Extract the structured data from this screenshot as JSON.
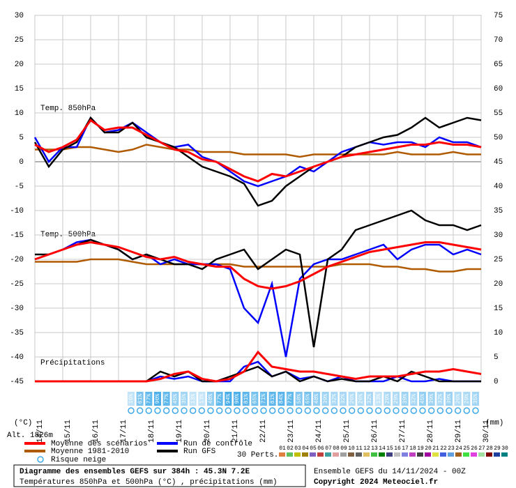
{
  "chart_data": {
    "type": "line",
    "annotations": {
      "t850": "Temp. 850hPa",
      "t500": "Temp. 500hPa",
      "precip": "Précipitations",
      "unit_left": "(°C)",
      "unit_right": "(mm)",
      "altitude": "Alt. 1826m"
    },
    "ylim": [
      -45,
      30
    ],
    "yticks": [
      -45,
      -40,
      -35,
      -30,
      -25,
      -20,
      -15,
      -10,
      -5,
      0,
      5,
      10,
      15,
      20,
      25,
      30
    ],
    "y2lim": [
      0,
      75
    ],
    "y2ticks": [
      0,
      5,
      10,
      15,
      20,
      25,
      30,
      35,
      40,
      45,
      50,
      55,
      60,
      65,
      70,
      75
    ],
    "xlim": [
      0,
      16
    ],
    "xticks": [
      {
        "value": 0,
        "label": "14/11"
      },
      {
        "value": 1,
        "label": "15/11"
      },
      {
        "value": 2,
        "label": "16/11"
      },
      {
        "value": 3,
        "label": "17/11"
      },
      {
        "value": 4,
        "label": "18/11"
      },
      {
        "value": 5,
        "label": "19/11"
      },
      {
        "value": 6,
        "label": "20/11"
      },
      {
        "value": 7,
        "label": "21/11"
      },
      {
        "value": 8,
        "label": "22/11"
      },
      {
        "value": 9,
        "label": "23/11"
      },
      {
        "value": 10,
        "label": "24/11"
      },
      {
        "value": 11,
        "label": "25/11"
      },
      {
        "value": 12,
        "label": "26/11"
      },
      {
        "value": 13,
        "label": "27/11"
      },
      {
        "value": 14,
        "label": "28/11"
      },
      {
        "value": 15,
        "label": "29/11"
      },
      {
        "value": 16,
        "label": "30/11"
      }
    ],
    "grid": true,
    "x": [
      0,
      0.5,
      1,
      1.5,
      2,
      2.5,
      3,
      3.5,
      4,
      4.5,
      5,
      5.5,
      6,
      6.5,
      7,
      7.5,
      8,
      8.5,
      9,
      9.5,
      10,
      10.5,
      11,
      11.5,
      12,
      12.5,
      13,
      13.5,
      14,
      14.5,
      15,
      15.5,
      16
    ],
    "series": [
      {
        "name": "Moyenne 1981-2010",
        "color": "#b05a00",
        "t850": [
          2.5,
          2.5,
          2.5,
          3,
          3,
          2.5,
          2,
          2.5,
          3.5,
          3,
          2.5,
          2.5,
          2,
          2,
          2,
          1.5,
          1.5,
          1.5,
          1.5,
          1,
          1.5,
          1.5,
          1.5,
          1.5,
          1.5,
          1.5,
          2,
          1.5,
          1.5,
          1.5,
          2,
          1.5,
          1.5
        ],
        "t500": [
          -20.5,
          -20.5,
          -20.5,
          -20.5,
          -20,
          -20,
          -20,
          -20.5,
          -21,
          -21,
          -21,
          -21,
          -21,
          -21,
          -21,
          -21.5,
          -21.5,
          -21.5,
          -21.5,
          -21.5,
          -21.5,
          -21.5,
          -21,
          -21,
          -21,
          -21.5,
          -21.5,
          -22,
          -22,
          -22.5,
          -22.5,
          -22,
          -22
        ]
      },
      {
        "name": "Run de contrôle",
        "color": "#0000ff",
        "t850": [
          5,
          0,
          3,
          3,
          9,
          6,
          6.5,
          8,
          6,
          4,
          3,
          3.5,
          1,
          0,
          -2,
          -4,
          -5,
          -4,
          -3,
          -1,
          -2,
          0,
          2,
          3,
          4,
          3.5,
          4,
          4,
          3,
          5,
          4,
          4,
          3
        ],
        "t500": [
          -20,
          -19,
          -18,
          -16.5,
          -16,
          -17,
          -18,
          -20,
          -19,
          -21,
          -20,
          -21,
          -21,
          -21,
          -22,
          -30,
          -33,
          -25,
          -40,
          -24,
          -21,
          -20,
          -20,
          -19,
          -18,
          -17,
          -20,
          -18,
          -17,
          -17,
          -19,
          -18,
          -19
        ],
        "precip": [
          0,
          0,
          0,
          0,
          0,
          0,
          0,
          0,
          0,
          1,
          0.5,
          1,
          0,
          0,
          0,
          3,
          4,
          1,
          2,
          0.5,
          1,
          0,
          1,
          0,
          0,
          0,
          1,
          0,
          0,
          0.5,
          0,
          0,
          0
        ]
      },
      {
        "name": "Run GFS",
        "color": "#000000",
        "t850": [
          4,
          -1,
          2.5,
          4,
          9,
          6,
          6,
          8,
          5,
          4,
          3,
          1,
          -1,
          -2,
          -3,
          -4.5,
          -9,
          -8,
          -5,
          -3,
          -1,
          0,
          1,
          3,
          4,
          5,
          5.5,
          7,
          9,
          7,
          8,
          9,
          8.5
        ],
        "t500": [
          -19,
          -19,
          -18,
          -17,
          -16,
          -17,
          -18,
          -20,
          -19,
          -20,
          -21,
          -21,
          -22,
          -20,
          -19,
          -18,
          -22,
          -20,
          -18,
          -19,
          -38,
          -20,
          -18,
          -14,
          -13,
          -12,
          -11,
          -10,
          -12,
          -13,
          -13,
          -14,
          -13
        ],
        "precip": [
          0,
          0,
          0,
          0,
          0,
          0,
          0,
          0,
          0,
          2,
          1,
          2,
          0,
          0,
          1,
          2,
          3,
          1,
          2,
          0,
          1,
          0,
          0.5,
          0,
          0,
          1,
          0,
          2,
          1,
          0,
          0,
          0,
          0
        ]
      },
      {
        "name": "Moyenne des scénarios",
        "color": "#ff0000",
        "t850": [
          3.5,
          2,
          3,
          4.5,
          8.5,
          6.5,
          7,
          7,
          5.5,
          4,
          2.5,
          2,
          0.5,
          0,
          -1.5,
          -3,
          -4,
          -2.5,
          -3,
          -2,
          -1,
          0,
          1,
          1.5,
          2,
          2.5,
          3,
          3.5,
          3.5,
          4,
          3.5,
          3.5,
          3
        ],
        "t500": [
          -20,
          -19,
          -18,
          -17,
          -16.5,
          -17,
          -17.5,
          -18.5,
          -19.5,
          -20,
          -19.5,
          -20.5,
          -21,
          -21.5,
          -21.5,
          -24,
          -25.5,
          -26,
          -25.5,
          -24.5,
          -23,
          -21.5,
          -20.5,
          -19.5,
          -18.5,
          -18,
          -17.5,
          -17,
          -16.5,
          -16.5,
          -17,
          -17.5,
          -18
        ],
        "precip": [
          0,
          0,
          0,
          0,
          0,
          0,
          0,
          0,
          0,
          0.5,
          1.5,
          2,
          0.5,
          0,
          0.5,
          2,
          6,
          3,
          2.5,
          2,
          2,
          1.5,
          1,
          0.5,
          1,
          1,
          1,
          1.5,
          2,
          2,
          2.5,
          2,
          1.5
        ]
      }
    ],
    "snow_risk": {
      "name": "Risque neige",
      "color": "#3fa9e8",
      "values": [
        16,
        61,
        77,
        90,
        77,
        45,
        35,
        13,
        13,
        48,
        77,
        94,
        90,
        81,
        65,
        71,
        81,
        84,
        77,
        58,
        65,
        48,
        39,
        32,
        32,
        26,
        26,
        32,
        13,
        29,
        29,
        39,
        32,
        45,
        39,
        32,
        39,
        26,
        29,
        35
      ],
      "value_labels": [
        "16%",
        "61%",
        "77%",
        "90%",
        "77%",
        "45%",
        "35%",
        "13%",
        "13%",
        "48%",
        "77%",
        "94%",
        "90%",
        "81%",
        "65%",
        "71%",
        "81%",
        "84%",
        "77%",
        "58%",
        "65%",
        "48%",
        "39%",
        "32%",
        "32%",
        "26%",
        "26%",
        "32%",
        "13%",
        "29%",
        "29%",
        "39%",
        "32%",
        "45%",
        "39%",
        "32%",
        "39%",
        "26%",
        "29%",
        "35%"
      ]
    },
    "perturbations": {
      "label": "30 Perts.",
      "members": [
        {
          "label": "01",
          "color": "#e08040"
        },
        {
          "label": "02",
          "color": "#60c060"
        },
        {
          "label": "03",
          "color": "#c0c000"
        },
        {
          "label": "04",
          "color": "#a08000"
        },
        {
          "label": "05",
          "color": "#8060c0"
        },
        {
          "label": "06",
          "color": "#c04040"
        },
        {
          "label": "07",
          "color": "#40a0a0"
        },
        {
          "label": "08",
          "color": "#e0a0a0"
        },
        {
          "label": "09",
          "color": "#a0a0a0"
        },
        {
          "label": "10",
          "color": "#806040"
        },
        {
          "label": "11",
          "color": "#606060"
        },
        {
          "label": "12",
          "color": "#e0c060"
        },
        {
          "label": "13",
          "color": "#40c040"
        },
        {
          "label": "14",
          "color": "#008000"
        },
        {
          "label": "15",
          "color": "#404080"
        },
        {
          "label": "16",
          "color": "#c0c0c0"
        },
        {
          "label": "17",
          "color": "#8080e0"
        },
        {
          "label": "18",
          "color": "#c040c0"
        },
        {
          "label": "19",
          "color": "#404040"
        },
        {
          "label": "20",
          "color": "#a000a0"
        },
        {
          "label": "21",
          "color": "#e0e040"
        },
        {
          "label": "22",
          "color": "#4060e0"
        },
        {
          "label": "23",
          "color": "#60a0e0"
        },
        {
          "label": "24",
          "color": "#a06020"
        },
        {
          "label": "25",
          "color": "#40e040"
        },
        {
          "label": "26",
          "color": "#e040e0"
        },
        {
          "label": "27",
          "color": "#a0e0a0"
        },
        {
          "label": "28",
          "color": "#800000"
        },
        {
          "label": "29",
          "color": "#2040a0"
        },
        {
          "label": "30",
          "color": "#008080"
        }
      ]
    },
    "footer": {
      "title": "Diagramme des ensembles GEFS sur 384h : 45.3N 7.2E",
      "subtitle": "Températures 850hPa et 500hPa (°C) , précipitations (mm)",
      "run": "Ensemble GEFS du 14/11/2024 - 00Z",
      "copyright": "Copyright 2024 Meteociel.fr"
    }
  }
}
